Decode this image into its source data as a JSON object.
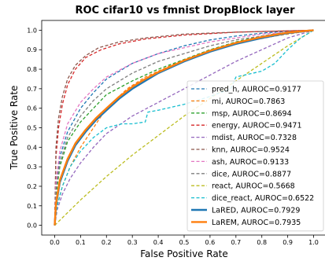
{
  "chart_data": {
    "type": "line",
    "title": "ROC cifar10 vs fmnist DropBlock layer",
    "xlabel": "False Positive Rate",
    "ylabel": "True Positive Rate",
    "xlim": [
      -0.05,
      1.05
    ],
    "ylim": [
      -0.05,
      1.05
    ],
    "xticks": [
      "0.0",
      "0.1",
      "0.2",
      "0.3",
      "0.4",
      "0.5",
      "0.6",
      "0.7",
      "0.8",
      "0.9",
      "1.0"
    ],
    "yticks": [
      "0.0",
      "0.1",
      "0.2",
      "0.3",
      "0.4",
      "0.5",
      "0.6",
      "0.7",
      "0.8",
      "0.9",
      "1.0"
    ],
    "grid": false,
    "legend_position": "lower-right",
    "series": [
      {
        "name": "pred_h, AUROC=0.9177",
        "color": "#1f77b4",
        "style": "dashed",
        "points": [
          [
            0,
            0
          ],
          [
            0.005,
            0.2
          ],
          [
            0.02,
            0.35
          ],
          [
            0.05,
            0.48
          ],
          [
            0.1,
            0.6
          ],
          [
            0.15,
            0.68
          ],
          [
            0.2,
            0.75
          ],
          [
            0.3,
            0.83
          ],
          [
            0.4,
            0.88
          ],
          [
            0.5,
            0.92
          ],
          [
            0.6,
            0.95
          ],
          [
            0.7,
            0.97
          ],
          [
            0.8,
            0.985
          ],
          [
            0.9,
            0.995
          ],
          [
            1,
            1
          ]
        ]
      },
      {
        "name": "mi, AUROC=0.7863",
        "color": "#ff7f0e",
        "style": "dashed",
        "points": [
          [
            0,
            0
          ],
          [
            0.01,
            0.1
          ],
          [
            0.03,
            0.2
          ],
          [
            0.06,
            0.3
          ],
          [
            0.1,
            0.4
          ],
          [
            0.15,
            0.5
          ],
          [
            0.2,
            0.6
          ],
          [
            0.28,
            0.7
          ],
          [
            0.35,
            0.76
          ],
          [
            0.45,
            0.82
          ],
          [
            0.55,
            0.87
          ],
          [
            0.65,
            0.91
          ],
          [
            0.75,
            0.945
          ],
          [
            0.85,
            0.97
          ],
          [
            0.95,
            0.99
          ],
          [
            1,
            1
          ]
        ]
      },
      {
        "name": "msp, AUROC=0.8694",
        "color": "#2ca02c",
        "style": "dashed",
        "points": [
          [
            0,
            0
          ],
          [
            0.005,
            0.15
          ],
          [
            0.02,
            0.3
          ],
          [
            0.05,
            0.43
          ],
          [
            0.1,
            0.53
          ],
          [
            0.15,
            0.6
          ],
          [
            0.2,
            0.67
          ],
          [
            0.3,
            0.74
          ],
          [
            0.4,
            0.8
          ],
          [
            0.5,
            0.85
          ],
          [
            0.6,
            0.9
          ],
          [
            0.7,
            0.94
          ],
          [
            0.8,
            0.97
          ],
          [
            0.9,
            0.99
          ],
          [
            1,
            1
          ]
        ]
      },
      {
        "name": "energy, AUROC=0.9471",
        "color": "#d62728",
        "style": "dashed",
        "points": [
          [
            0,
            0
          ],
          [
            0.005,
            0.35
          ],
          [
            0.015,
            0.5
          ],
          [
            0.03,
            0.62
          ],
          [
            0.05,
            0.72
          ],
          [
            0.08,
            0.8
          ],
          [
            0.12,
            0.86
          ],
          [
            0.18,
            0.9
          ],
          [
            0.25,
            0.93
          ],
          [
            0.35,
            0.955
          ],
          [
            0.5,
            0.975
          ],
          [
            0.7,
            0.99
          ],
          [
            1,
            1
          ]
        ]
      },
      {
        "name": "mdist, AUROC=0.7328",
        "color": "#9467bd",
        "style": "dashed",
        "points": [
          [
            0,
            0
          ],
          [
            0.01,
            0.08
          ],
          [
            0.03,
            0.16
          ],
          [
            0.06,
            0.24
          ],
          [
            0.1,
            0.32
          ],
          [
            0.15,
            0.4
          ],
          [
            0.2,
            0.47
          ],
          [
            0.3,
            0.56
          ],
          [
            0.4,
            0.63
          ],
          [
            0.5,
            0.7
          ],
          [
            0.6,
            0.77
          ],
          [
            0.7,
            0.84
          ],
          [
            0.8,
            0.9
          ],
          [
            0.9,
            0.96
          ],
          [
            1,
            1
          ]
        ]
      },
      {
        "name": "knn, AUROC=0.9524",
        "color": "#8c564b",
        "style": "dashed",
        "points": [
          [
            0,
            0
          ],
          [
            0.005,
            0.4
          ],
          [
            0.015,
            0.55
          ],
          [
            0.03,
            0.66
          ],
          [
            0.05,
            0.75
          ],
          [
            0.08,
            0.82
          ],
          [
            0.12,
            0.87
          ],
          [
            0.17,
            0.91
          ],
          [
            0.25,
            0.94
          ],
          [
            0.35,
            0.96
          ],
          [
            0.5,
            0.98
          ],
          [
            0.7,
            0.99
          ],
          [
            1,
            1
          ]
        ]
      },
      {
        "name": "ash, AUROC=0.9133",
        "color": "#e377c2",
        "style": "dashed",
        "points": [
          [
            0,
            0
          ],
          [
            0.005,
            0.22
          ],
          [
            0.02,
            0.38
          ],
          [
            0.05,
            0.52
          ],
          [
            0.1,
            0.63
          ],
          [
            0.15,
            0.7
          ],
          [
            0.2,
            0.76
          ],
          [
            0.3,
            0.83
          ],
          [
            0.4,
            0.88
          ],
          [
            0.5,
            0.91
          ],
          [
            0.6,
            0.94
          ],
          [
            0.7,
            0.96
          ],
          [
            0.8,
            0.98
          ],
          [
            0.9,
            0.99
          ],
          [
            1,
            1
          ]
        ]
      },
      {
        "name": "dice, AUROC=0.8877",
        "color": "#7f7f7f",
        "style": "dashed",
        "points": [
          [
            0,
            0
          ],
          [
            0.005,
            0.18
          ],
          [
            0.02,
            0.32
          ],
          [
            0.05,
            0.45
          ],
          [
            0.1,
            0.56
          ],
          [
            0.15,
            0.64
          ],
          [
            0.2,
            0.7
          ],
          [
            0.3,
            0.78
          ],
          [
            0.4,
            0.84
          ],
          [
            0.5,
            0.88
          ],
          [
            0.6,
            0.92
          ],
          [
            0.7,
            0.95
          ],
          [
            0.8,
            0.97
          ],
          [
            0.9,
            0.99
          ],
          [
            1,
            1
          ]
        ]
      },
      {
        "name": "react, AUROC=0.5668",
        "color": "#bcbd22",
        "style": "dashed",
        "points": [
          [
            0,
            0
          ],
          [
            0.1,
            0.13
          ],
          [
            0.2,
            0.25
          ],
          [
            0.3,
            0.36
          ],
          [
            0.4,
            0.46
          ],
          [
            0.5,
            0.56
          ],
          [
            0.6,
            0.65
          ],
          [
            0.7,
            0.74
          ],
          [
            0.8,
            0.83
          ],
          [
            0.9,
            0.92
          ],
          [
            1,
            1
          ]
        ]
      },
      {
        "name": "dice_react, AUROC=0.6522",
        "color": "#17becf",
        "style": "dashed",
        "points": [
          [
            0,
            0
          ],
          [
            0.01,
            0.1
          ],
          [
            0.03,
            0.2
          ],
          [
            0.06,
            0.3
          ],
          [
            0.1,
            0.38
          ],
          [
            0.15,
            0.45
          ],
          [
            0.2,
            0.5
          ],
          [
            0.26,
            0.52
          ],
          [
            0.3,
            0.52
          ],
          [
            0.35,
            0.53
          ],
          [
            0.36,
            0.58
          ],
          [
            0.4,
            0.59
          ],
          [
            0.5,
            0.62
          ],
          [
            0.6,
            0.66
          ],
          [
            0.68,
            0.7
          ],
          [
            0.7,
            0.76
          ],
          [
            0.8,
            0.79
          ],
          [
            0.85,
            0.83
          ],
          [
            0.9,
            0.9
          ],
          [
            0.95,
            0.96
          ],
          [
            1,
            1
          ]
        ]
      },
      {
        "name": "LaRED, AUROC=0.7929",
        "color": "#1f77b4",
        "style": "solid",
        "points": [
          [
            0,
            0
          ],
          [
            0.005,
            0.1
          ],
          [
            0.02,
            0.22
          ],
          [
            0.05,
            0.33
          ],
          [
            0.08,
            0.41
          ],
          [
            0.12,
            0.48
          ],
          [
            0.16,
            0.54
          ],
          [
            0.2,
            0.59
          ],
          [
            0.25,
            0.65
          ],
          [
            0.3,
            0.7
          ],
          [
            0.35,
            0.74
          ],
          [
            0.4,
            0.78
          ],
          [
            0.5,
            0.84
          ],
          [
            0.6,
            0.89
          ],
          [
            0.7,
            0.93
          ],
          [
            0.8,
            0.96
          ],
          [
            0.9,
            0.985
          ],
          [
            1,
            1
          ]
        ]
      },
      {
        "name": "LaREM, AUROC=0.7935",
        "color": "#ff7f0e",
        "style": "solid",
        "points": [
          [
            0,
            0
          ],
          [
            0.005,
            0.11
          ],
          [
            0.02,
            0.23
          ],
          [
            0.05,
            0.34
          ],
          [
            0.08,
            0.42
          ],
          [
            0.12,
            0.49
          ],
          [
            0.16,
            0.55
          ],
          [
            0.2,
            0.6
          ],
          [
            0.25,
            0.66
          ],
          [
            0.3,
            0.71
          ],
          [
            0.35,
            0.75
          ],
          [
            0.4,
            0.785
          ],
          [
            0.5,
            0.845
          ],
          [
            0.6,
            0.895
          ],
          [
            0.7,
            0.935
          ],
          [
            0.8,
            0.965
          ],
          [
            0.9,
            0.988
          ],
          [
            1,
            1
          ]
        ]
      }
    ]
  }
}
